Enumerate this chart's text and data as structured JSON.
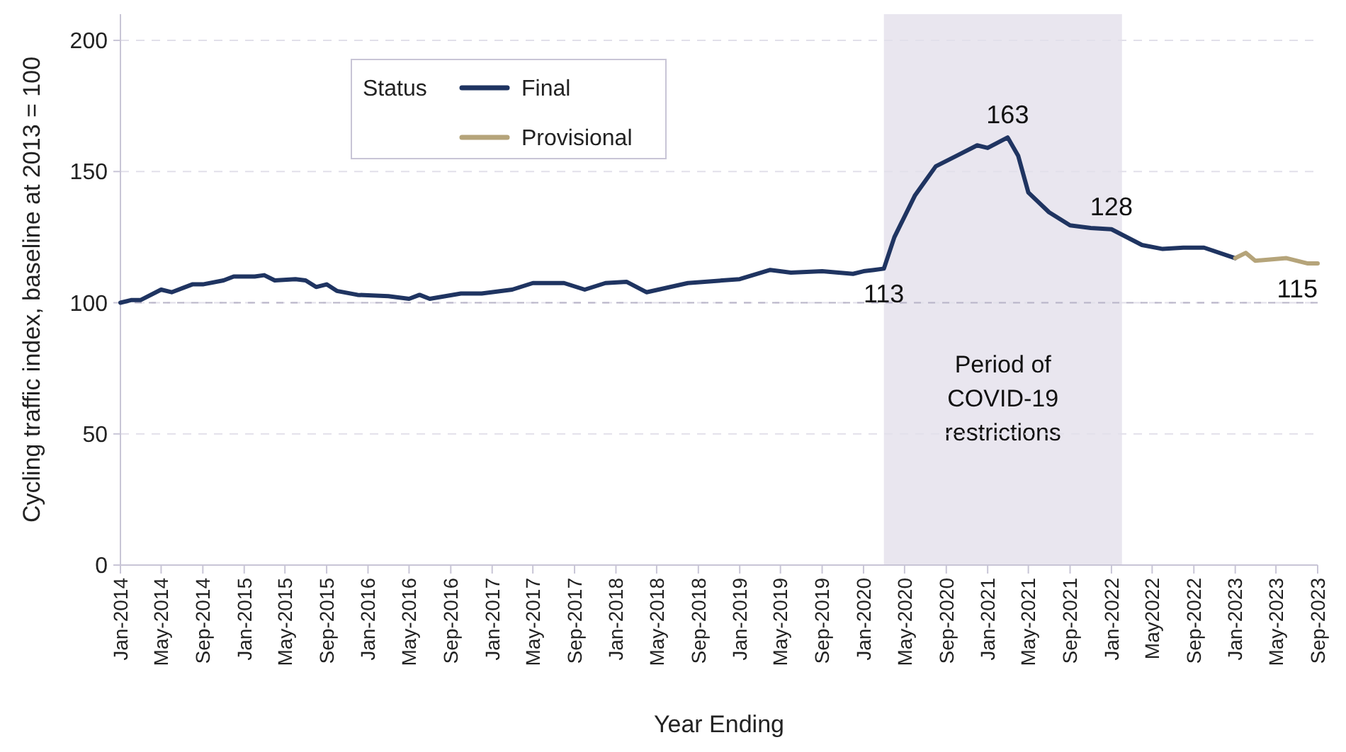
{
  "chart_data": {
    "type": "line",
    "xlabel": "Year Ending",
    "ylabel": "Cycling traffic index, baseline at 2013 = 100",
    "legend_title": "Status",
    "legend": "top left",
    "grid": "y",
    "line_style": "solid",
    "marker": "none",
    "xlim": [
      "2014-01",
      "2023-09"
    ],
    "ylim": [
      0,
      210
    ],
    "yticks": [
      0,
      50,
      100,
      150,
      200
    ],
    "xticks": [
      {
        "value": "2014-01",
        "label": "Jan-2014"
      },
      {
        "value": "2014-05",
        "label": "May-2014"
      },
      {
        "value": "2014-09",
        "label": "Sep-2014"
      },
      {
        "value": "2015-01",
        "label": "Jan-2015"
      },
      {
        "value": "2015-05",
        "label": "May-2015"
      },
      {
        "value": "2015-09",
        "label": "Sep-2015"
      },
      {
        "value": "2016-01",
        "label": "Jan-2016"
      },
      {
        "value": "2016-05",
        "label": "May-2016"
      },
      {
        "value": "2016-09",
        "label": "Sep-2016"
      },
      {
        "value": "2017-01",
        "label": "Jan-2017"
      },
      {
        "value": "2017-05",
        "label": "May-2017"
      },
      {
        "value": "2017-09",
        "label": "Sep-2017"
      },
      {
        "value": "2018-01",
        "label": "Jan-2018"
      },
      {
        "value": "2018-05",
        "label": "May-2018"
      },
      {
        "value": "2018-09",
        "label": "Sep-2018"
      },
      {
        "value": "2019-01",
        "label": "Jan-2019"
      },
      {
        "value": "2019-05",
        "label": "May-2019"
      },
      {
        "value": "2019-09",
        "label": "Sep-2019"
      },
      {
        "value": "2020-01",
        "label": "Jan-2020"
      },
      {
        "value": "2020-05",
        "label": "May-2020"
      },
      {
        "value": "2020-09",
        "label": "Sep-2020"
      },
      {
        "value": "2021-01",
        "label": "Jan-2021"
      },
      {
        "value": "2021-05",
        "label": "May-2021"
      },
      {
        "value": "2021-09",
        "label": "Sep-2021"
      },
      {
        "value": "2022-01",
        "label": "Jan-2022"
      },
      {
        "value": "2022-05",
        "label": "May2022"
      },
      {
        "value": "2022-09",
        "label": "Sep-2022"
      },
      {
        "value": "2023-01",
        "label": "Jan-2023"
      },
      {
        "value": "2023-05",
        "label": "May-2023"
      },
      {
        "value": "2023-09",
        "label": "Sep-2023"
      }
    ],
    "bands": [
      {
        "axis": "x",
        "from": "2020-03",
        "to": "2022-02",
        "label": "Period of COVID-19 restrictions",
        "color": "#e9e6ef"
      }
    ],
    "ref_lines": [
      {
        "axis": "y",
        "value": 100,
        "color": "#b8b4c8",
        "line_style": "dashed"
      }
    ],
    "series": [
      {
        "name": "Final",
        "color": "#1f3461",
        "x": [
          "2014-01",
          "2014-02",
          "2014-03",
          "2014-05",
          "2014-06",
          "2014-08",
          "2014-09",
          "2014-11",
          "2014-12",
          "2015-02",
          "2015-03",
          "2015-04",
          "2015-06",
          "2015-07",
          "2015-08",
          "2015-09",
          "2015-10",
          "2015-12",
          "2016-03",
          "2016-05",
          "2016-06",
          "2016-07",
          "2016-10",
          "2016-12",
          "2017-03",
          "2017-05",
          "2017-08",
          "2017-10",
          "2017-12",
          "2018-02",
          "2018-04",
          "2018-08",
          "2019-01",
          "2019-04",
          "2019-06",
          "2019-09",
          "2019-12",
          "2020-01",
          "2020-02",
          "2020-03",
          "2020-04",
          "2020-06",
          "2020-08",
          "2020-10",
          "2020-12",
          "2021-01",
          "2021-03",
          "2021-04",
          "2021-05",
          "2021-07",
          "2021-09",
          "2021-11",
          "2022-01",
          "2022-04",
          "2022-06",
          "2022-08",
          "2022-10",
          "2023-01"
        ],
        "values": [
          100,
          101,
          101,
          105,
          104,
          107,
          107,
          108.5,
          110,
          110,
          110.5,
          108.5,
          109,
          108.5,
          106,
          107,
          104.5,
          103,
          102.5,
          101.5,
          103,
          101.5,
          103.5,
          103.5,
          105,
          107.5,
          107.5,
          105,
          107.5,
          108,
          104,
          107.5,
          109,
          112.5,
          111.5,
          112,
          111,
          112,
          112.5,
          113,
          125,
          141,
          152,
          156,
          160,
          159,
          163,
          156,
          142,
          134.5,
          129.5,
          128.5,
          128,
          122,
          120.5,
          121,
          121,
          117
        ]
      },
      {
        "name": "Provisional",
        "color": "#b5a47a",
        "x": [
          "2023-01",
          "2023-02",
          "2023-03",
          "2023-06",
          "2023-08",
          "2023-09"
        ],
        "values": [
          117,
          119,
          116,
          117,
          115,
          115
        ]
      }
    ],
    "annotations": [
      {
        "text": "113",
        "x": "2020-03",
        "y": 113
      },
      {
        "text": "163",
        "x": "2021-03",
        "y": 163
      },
      {
        "text": "128",
        "x": "2022-01",
        "y": 128
      },
      {
        "text": "115",
        "x": "2023-09",
        "y": 115
      }
    ]
  }
}
